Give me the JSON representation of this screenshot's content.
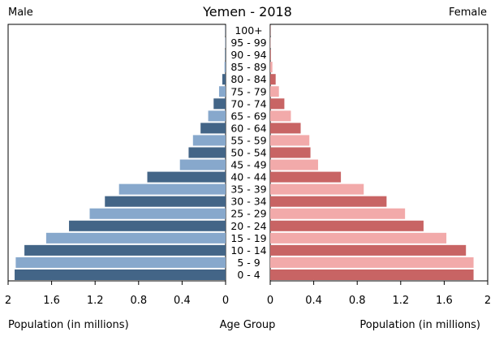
{
  "chart_data": {
    "type": "bar",
    "title": "Yemen - 2018",
    "left_label": "Male",
    "right_label": "Female",
    "xlabel_left": "Population (in millions)",
    "xlabel_center": "Age Group",
    "xlabel_right": "Population (in millions)",
    "xlim": [
      0,
      2
    ],
    "ticks": [
      "2",
      "1.6",
      "1.2",
      "0.8",
      "0.4",
      "0"
    ],
    "ticks_right": [
      "0",
      "0.4",
      "0.8",
      "1.2",
      "1.6",
      "2"
    ],
    "categories": [
      "0 - 4",
      "5 - 9",
      "10 - 14",
      "15 - 19",
      "20 - 24",
      "25 - 29",
      "30 - 34",
      "35 - 39",
      "40 - 44",
      "45 - 49",
      "50 - 54",
      "55 - 59",
      "60 - 64",
      "65 - 69",
      "70 - 74",
      "75 - 79",
      "80 - 84",
      "85 - 89",
      "90 - 94",
      "95 - 99",
      "100+"
    ],
    "series": [
      {
        "name": "Male",
        "values": [
          1.94,
          1.93,
          1.85,
          1.65,
          1.44,
          1.25,
          1.11,
          0.98,
          0.72,
          0.42,
          0.34,
          0.3,
          0.23,
          0.16,
          0.11,
          0.06,
          0.03,
          0.01,
          0.005,
          0.003,
          0.002
        ]
      },
      {
        "name": "Female",
        "values": [
          1.87,
          1.87,
          1.8,
          1.62,
          1.41,
          1.24,
          1.07,
          0.86,
          0.65,
          0.44,
          0.37,
          0.36,
          0.28,
          0.19,
          0.13,
          0.08,
          0.05,
          0.02,
          0.006,
          0.003,
          0.002
        ]
      }
    ],
    "colors": {
      "male_dark": "#436587",
      "male_light": "#87a8cc",
      "female_dark": "#c86464",
      "female_light": "#f2aaaa"
    }
  }
}
